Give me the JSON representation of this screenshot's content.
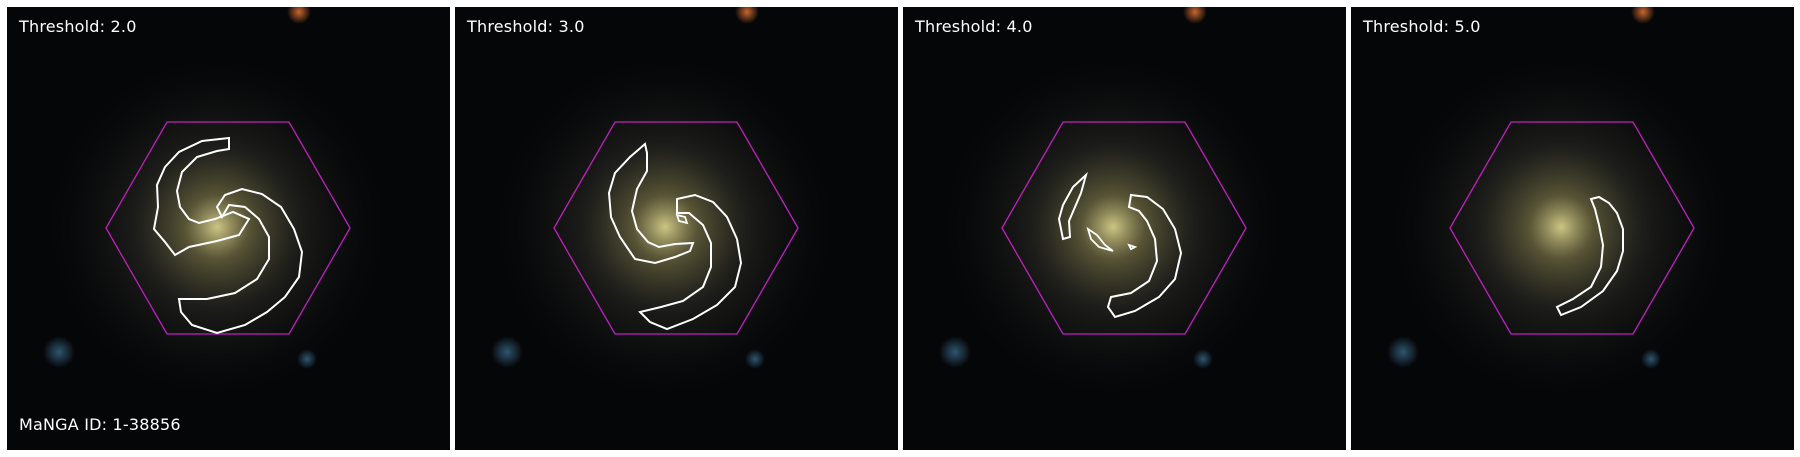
{
  "panels": [
    {
      "threshold_text": "Threshold: 2.0"
    },
    {
      "threshold_text": "Threshold: 3.0"
    },
    {
      "threshold_text": "Threshold: 4.0"
    },
    {
      "threshold_text": "Threshold: 5.0"
    }
  ],
  "footer": {
    "manga_id": "MaNGA ID: 1-38856"
  },
  "colors": {
    "background": "#050608",
    "hexagon": "#c020c0",
    "contour": "#ffffff",
    "galaxy_core": "#d8d08c",
    "text": "#ffffff"
  }
}
